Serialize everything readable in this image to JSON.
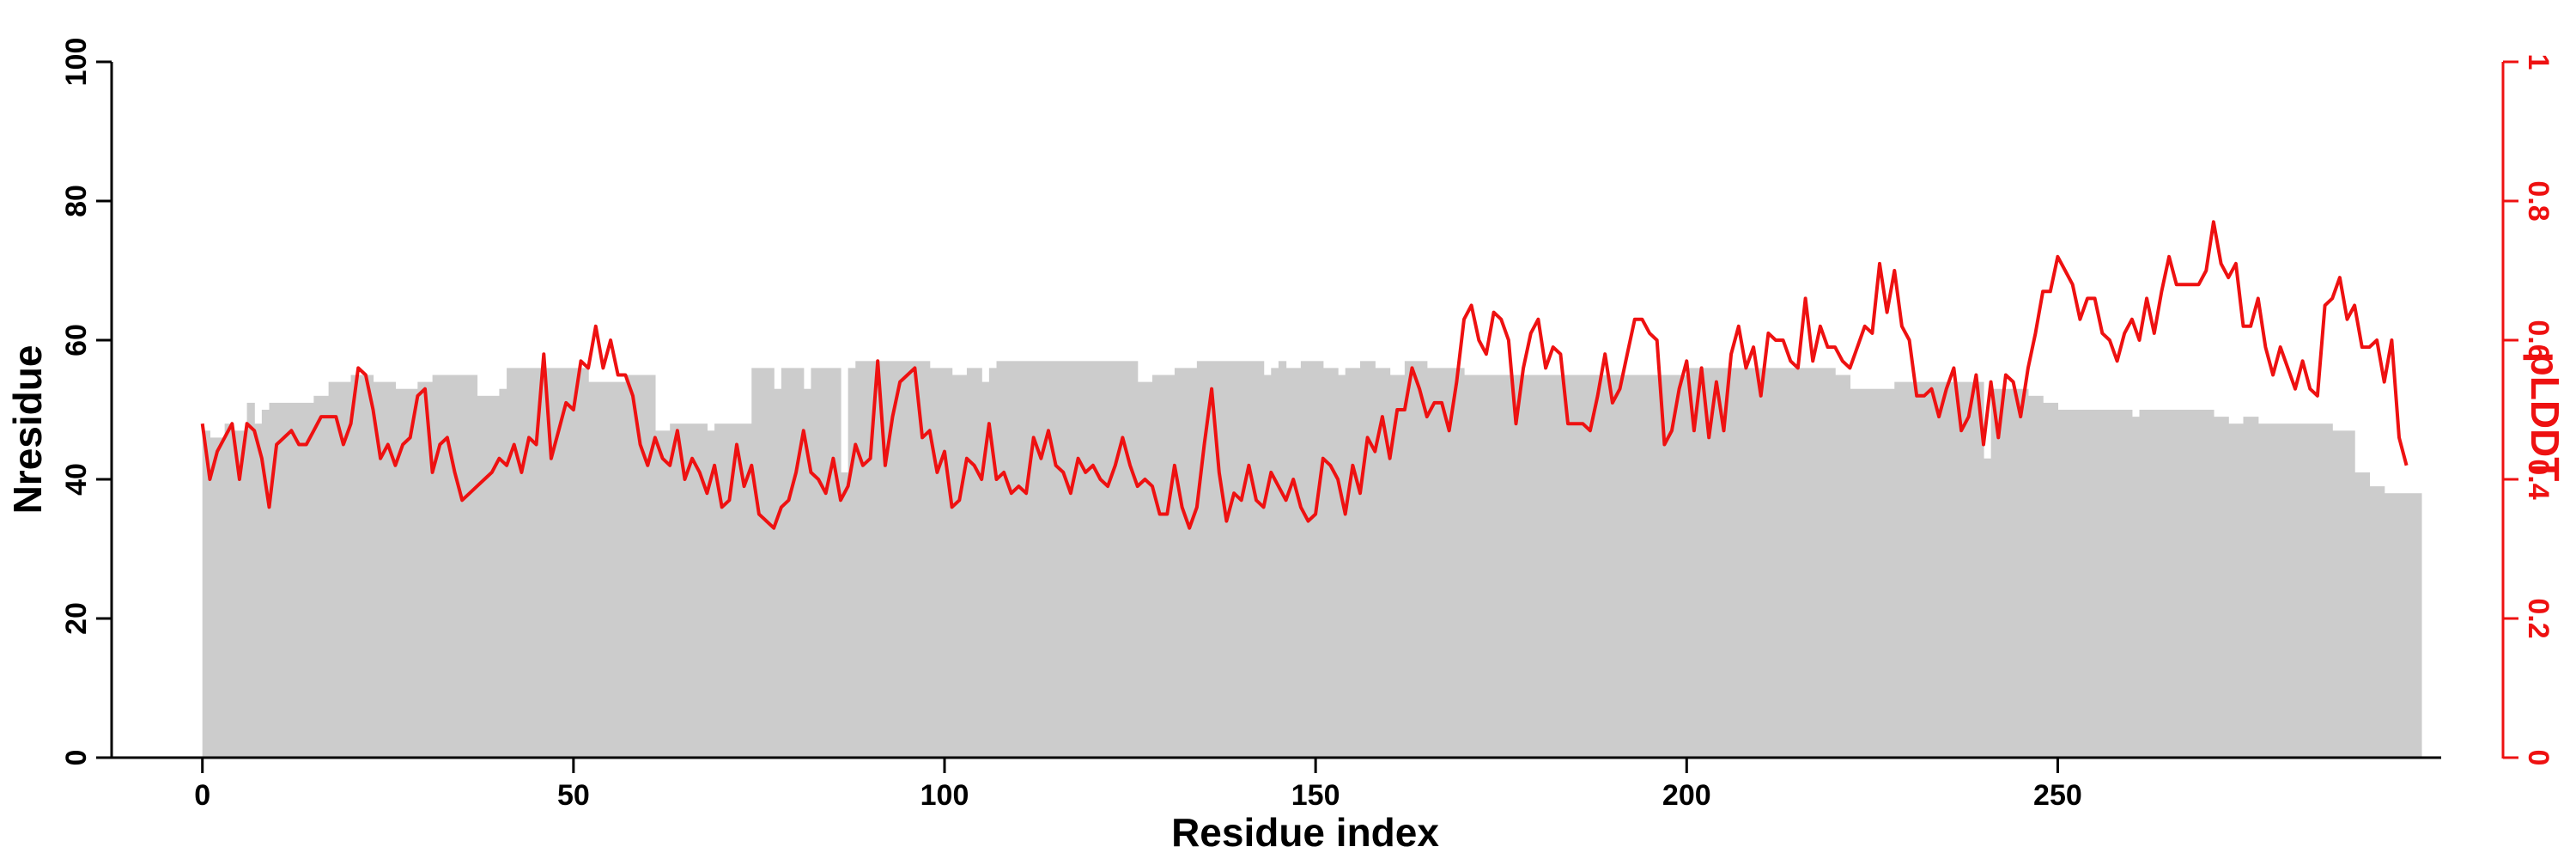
{
  "chart_data": {
    "type": "bar+line",
    "title": "",
    "xlabel": "Residue index",
    "ylabel_left": "Nresidue",
    "ylabel_right": "pLDDT",
    "xlim": [
      -12,
      310
    ],
    "ylim_left": [
      0,
      100
    ],
    "ylim_right": [
      0,
      1
    ],
    "xticks": [
      0,
      50,
      100,
      150,
      200,
      250
    ],
    "yticks_left": [
      0,
      20,
      40,
      60,
      80,
      100
    ],
    "yticks_right": [
      0,
      0.2,
      0.4,
      0.6,
      0.8,
      1
    ],
    "grid": false,
    "colors": {
      "bars": "#cccccc",
      "line": "#ee1111",
      "left_axis": "#000000",
      "right_axis": "#ee1111"
    },
    "bar_segments": [
      [
        0,
        1,
        47
      ],
      [
        1,
        3,
        46
      ],
      [
        3,
        4,
        48
      ],
      [
        4,
        6,
        47
      ],
      [
        6,
        7,
        51
      ],
      [
        7,
        8,
        48
      ],
      [
        8,
        9,
        50
      ],
      [
        9,
        15,
        51
      ],
      [
        15,
        17,
        52
      ],
      [
        17,
        20,
        54
      ],
      [
        20,
        23,
        55
      ],
      [
        23,
        26,
        54
      ],
      [
        26,
        29,
        53
      ],
      [
        29,
        31,
        54
      ],
      [
        31,
        37,
        55
      ],
      [
        37,
        40,
        52
      ],
      [
        40,
        41,
        53
      ],
      [
        41,
        52,
        56
      ],
      [
        52,
        57,
        54
      ],
      [
        57,
        61,
        55
      ],
      [
        61,
        63,
        47
      ],
      [
        63,
        68,
        48
      ],
      [
        68,
        69,
        47
      ],
      [
        69,
        74,
        48
      ],
      [
        74,
        77,
        56
      ],
      [
        77,
        78,
        53
      ],
      [
        78,
        81,
        56
      ],
      [
        81,
        82,
        53
      ],
      [
        82,
        86,
        56
      ],
      [
        86,
        87,
        41
      ],
      [
        87,
        88,
        56
      ],
      [
        88,
        98,
        57
      ],
      [
        98,
        101,
        56
      ],
      [
        101,
        103,
        55
      ],
      [
        103,
        105,
        56
      ],
      [
        105,
        106,
        54
      ],
      [
        106,
        107,
        56
      ],
      [
        107,
        126,
        57
      ],
      [
        126,
        128,
        54
      ],
      [
        128,
        131,
        55
      ],
      [
        131,
        134,
        56
      ],
      [
        134,
        143,
        57
      ],
      [
        143,
        144,
        55
      ],
      [
        144,
        145,
        56
      ],
      [
        145,
        146,
        57
      ],
      [
        146,
        148,
        56
      ],
      [
        148,
        151,
        57
      ],
      [
        151,
        153,
        56
      ],
      [
        153,
        154,
        55
      ],
      [
        154,
        156,
        56
      ],
      [
        156,
        158,
        57
      ],
      [
        158,
        160,
        56
      ],
      [
        160,
        162,
        55
      ],
      [
        162,
        165,
        57
      ],
      [
        165,
        170,
        56
      ],
      [
        170,
        200,
        55
      ],
      [
        200,
        220,
        56
      ],
      [
        220,
        222,
        55
      ],
      [
        222,
        228,
        53
      ],
      [
        228,
        240,
        54
      ],
      [
        240,
        241,
        43
      ],
      [
        241,
        246,
        53
      ],
      [
        246,
        248,
        52
      ],
      [
        248,
        250,
        51
      ],
      [
        250,
        260,
        50
      ],
      [
        260,
        261,
        49
      ],
      [
        261,
        262,
        50
      ],
      [
        262,
        271,
        50
      ],
      [
        271,
        273,
        49
      ],
      [
        273,
        275,
        48
      ],
      [
        275,
        277,
        49
      ],
      [
        277,
        287,
        48
      ],
      [
        287,
        290,
        47
      ],
      [
        290,
        292,
        41
      ],
      [
        292,
        294,
        39
      ],
      [
        294,
        299,
        38
      ]
    ],
    "plddt": {
      "x": [
        0,
        1,
        2,
        3,
        4,
        5,
        6,
        7,
        8,
        9,
        10,
        11,
        12,
        13,
        14,
        15,
        16,
        17,
        18,
        19,
        20,
        21,
        22,
        23,
        24,
        25,
        26,
        27,
        28,
        29,
        30,
        31,
        32,
        33,
        34,
        35,
        36,
        37,
        38,
        39,
        40,
        41,
        42,
        43,
        44,
        45,
        46,
        47,
        48,
        49,
        50,
        51,
        52,
        53,
        54,
        55,
        56,
        57,
        58,
        59,
        60,
        61,
        62,
        63,
        64,
        65,
        66,
        67,
        68,
        69,
        70,
        71,
        72,
        73,
        74,
        75,
        76,
        77,
        78,
        79,
        80,
        81,
        82,
        83,
        84,
        85,
        86,
        87,
        88,
        89,
        90,
        91,
        92,
        93,
        94,
        95,
        96,
        97,
        98,
        99,
        100,
        101,
        102,
        103,
        104,
        105,
        106,
        107,
        108,
        109,
        110,
        111,
        112,
        113,
        114,
        115,
        116,
        117,
        118,
        119,
        120,
        121,
        122,
        123,
        124,
        125,
        126,
        127,
        128,
        129,
        130,
        131,
        132,
        133,
        134,
        135,
        136,
        137,
        138,
        139,
        140,
        141,
        142,
        143,
        144,
        145,
        146,
        147,
        148,
        149,
        150,
        151,
        152,
        153,
        154,
        155,
        156,
        157,
        158,
        159,
        160,
        161,
        162,
        163,
        164,
        165,
        166,
        167,
        168,
        169,
        170,
        171,
        172,
        173,
        174,
        175,
        176,
        177,
        178,
        179,
        180,
        181,
        182,
        183,
        184,
        185,
        186,
        187,
        188,
        189,
        190,
        191,
        192,
        193,
        194,
        195,
        196,
        197,
        198,
        199,
        200,
        201,
        202,
        203,
        204,
        205,
        206,
        207,
        208,
        209,
        210,
        211,
        212,
        213,
        214,
        215,
        216,
        217,
        218,
        219,
        220,
        221,
        222,
        223,
        224,
        225,
        226,
        227,
        228,
        229,
        230,
        231,
        232,
        233,
        234,
        235,
        236,
        237,
        238,
        239,
        240,
        241,
        242,
        243,
        244,
        245,
        246,
        247,
        248,
        249,
        250,
        251,
        252,
        253,
        254,
        255,
        256,
        257,
        258,
        259,
        260,
        261,
        262,
        263,
        264,
        265,
        266,
        267,
        268,
        269,
        270,
        271,
        272,
        273,
        274,
        275,
        276,
        277,
        278,
        279,
        280,
        281,
        282,
        283,
        284,
        285,
        286,
        287,
        288,
        289,
        290,
        291,
        292,
        293,
        294,
        295,
        296,
        297
      ],
      "y": [
        0.48,
        0.4,
        0.44,
        0.46,
        0.48,
        0.4,
        0.48,
        0.47,
        0.43,
        0.36,
        0.45,
        0.46,
        0.47,
        0.45,
        0.45,
        0.47,
        0.49,
        0.49,
        0.49,
        0.45,
        0.48,
        0.56,
        0.55,
        0.5,
        0.43,
        0.45,
        0.42,
        0.45,
        0.46,
        0.52,
        0.53,
        0.41,
        0.45,
        0.46,
        0.41,
        0.37,
        0.38,
        0.39,
        0.4,
        0.41,
        0.43,
        0.42,
        0.45,
        0.41,
        0.46,
        0.45,
        0.58,
        0.43,
        0.47,
        0.51,
        0.5,
        0.57,
        0.56,
        0.62,
        0.56,
        0.6,
        0.55,
        0.55,
        0.52,
        0.45,
        0.42,
        0.46,
        0.43,
        0.42,
        0.47,
        0.4,
        0.43,
        0.41,
        0.38,
        0.42,
        0.36,
        0.37,
        0.45,
        0.39,
        0.42,
        0.35,
        0.34,
        0.33,
        0.36,
        0.37,
        0.41,
        0.47,
        0.41,
        0.4,
        0.38,
        0.43,
        0.37,
        0.39,
        0.45,
        0.42,
        0.43,
        0.57,
        0.42,
        0.49,
        0.54,
        0.55,
        0.56,
        0.46,
        0.47,
        0.41,
        0.44,
        0.36,
        0.37,
        0.43,
        0.42,
        0.4,
        0.48,
        0.4,
        0.41,
        0.38,
        0.39,
        0.38,
        0.46,
        0.43,
        0.47,
        0.42,
        0.41,
        0.38,
        0.43,
        0.41,
        0.42,
        0.4,
        0.39,
        0.42,
        0.46,
        0.42,
        0.39,
        0.4,
        0.39,
        0.35,
        0.35,
        0.42,
        0.36,
        0.33,
        0.36,
        0.45,
        0.53,
        0.41,
        0.34,
        0.38,
        0.37,
        0.42,
        0.37,
        0.36,
        0.41,
        0.39,
        0.37,
        0.4,
        0.36,
        0.34,
        0.35,
        0.43,
        0.42,
        0.4,
        0.35,
        0.42,
        0.38,
        0.46,
        0.44,
        0.49,
        0.43,
        0.5,
        0.5,
        0.56,
        0.53,
        0.49,
        0.51,
        0.51,
        0.47,
        0.54,
        0.63,
        0.65,
        0.6,
        0.58,
        0.64,
        0.63,
        0.6,
        0.48,
        0.56,
        0.61,
        0.63,
        0.56,
        0.59,
        0.58,
        0.48,
        0.48,
        0.48,
        0.47,
        0.52,
        0.58,
        0.51,
        0.53,
        0.58,
        0.63,
        0.63,
        0.61,
        0.6,
        0.45,
        0.47,
        0.53,
        0.57,
        0.47,
        0.56,
        0.46,
        0.54,
        0.47,
        0.58,
        0.62,
        0.56,
        0.59,
        0.52,
        0.61,
        0.6,
        0.6,
        0.57,
        0.56,
        0.66,
        0.57,
        0.62,
        0.59,
        0.59,
        0.57,
        0.56,
        0.59,
        0.62,
        0.61,
        0.71,
        0.64,
        0.7,
        0.62,
        0.6,
        0.52,
        0.52,
        0.53,
        0.49,
        0.53,
        0.56,
        0.47,
        0.49,
        0.55,
        0.45,
        0.54,
        0.46,
        0.55,
        0.54,
        0.49,
        0.56,
        0.61,
        0.67,
        0.67,
        0.72,
        0.7,
        0.68,
        0.63,
        0.66,
        0.66,
        0.61,
        0.6,
        0.57,
        0.61,
        0.63,
        0.6,
        0.66,
        0.61,
        0.67,
        0.72,
        0.68,
        0.68,
        0.68,
        0.68,
        0.7,
        0.77,
        0.71,
        0.69,
        0.71,
        0.62,
        0.62,
        0.66,
        0.59,
        0.55,
        0.59,
        0.56,
        0.53,
        0.57,
        0.53,
        0.52,
        0.65,
        0.66,
        0.69,
        0.63,
        0.65,
        0.59,
        0.59,
        0.6,
        0.54,
        0.6,
        0.46,
        0.42
      ]
    }
  }
}
